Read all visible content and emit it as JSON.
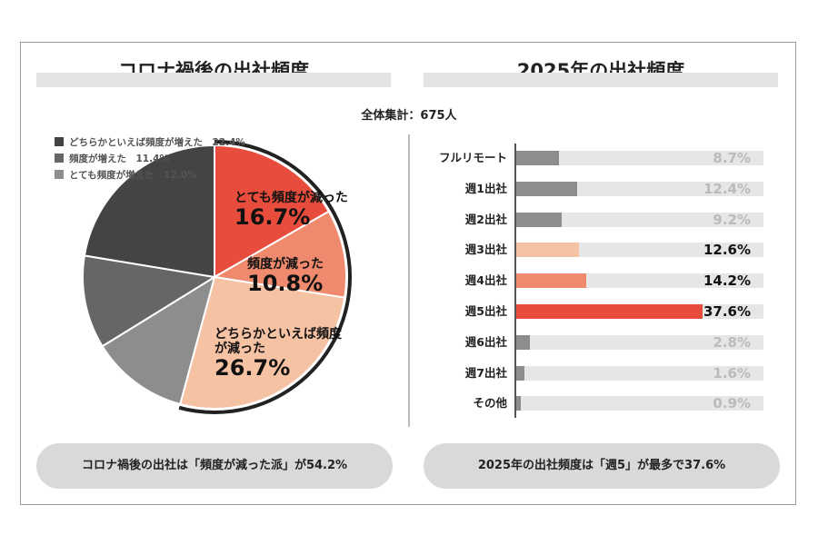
{
  "left_title": "コロナ禍後の出社頻度",
  "right_title": "2025年の出社頻度",
  "total_label": "全体集計：675人",
  "left_summary": "コロナ禍後の出社は「頻度が減った派」が54.2%",
  "right_summary": "2025年の出社頻度は「週5」が最多で37.6%",
  "chart_data": [
    {
      "type": "pie",
      "title": "コロナ禍後の出社頻度",
      "slices": [
        {
          "label": "とても頻度が減った",
          "value": 16.7,
          "display": "16.7%",
          "color": "#e74c3c"
        },
        {
          "label": "頻度が減った",
          "value": 10.8,
          "display": "10.8%",
          "color": "#ef8a6e"
        },
        {
          "label": "どちらかといえば頻度が減った",
          "value": 26.7,
          "display": "26.7%",
          "color": "#f6c2a4"
        },
        {
          "label": "とても頻度が増えた",
          "value": 12.0,
          "display": "12.0%",
          "color": "#8d8d8d"
        },
        {
          "label": "頻度が増えた",
          "value": 11.4,
          "display": "11.4%",
          "color": "#666666"
        },
        {
          "label": "どちらかといえば頻度が増えた",
          "value": 22.4,
          "display": "22.4%",
          "color": "#444444"
        }
      ],
      "legend": [
        {
          "text": "どちらかといえば頻度が増えた　22.4%",
          "color": "#444444"
        },
        {
          "text": "頻度が増えた　11.4%",
          "color": "#666666"
        },
        {
          "text": "とても頻度が増えた　12.0%",
          "color": "#8d8d8d"
        }
      ],
      "inner_labels": [
        {
          "text": "とても頻度が減った",
          "value": "16.7%"
        },
        {
          "text": "頻度が減った",
          "value": "10.8%"
        },
        {
          "text": "どちらかといえば頻度が減った",
          "value": "26.7%"
        }
      ]
    },
    {
      "type": "bar",
      "title": "2025年の出社頻度",
      "categories": [
        "フルリモート",
        "週1出社",
        "週2出社",
        "週3出社",
        "週4出社",
        "週5出社",
        "週6出社",
        "週7出社",
        "その他"
      ],
      "values": [
        8.7,
        12.4,
        9.2,
        12.6,
        14.2,
        37.6,
        2.8,
        1.6,
        0.9
      ],
      "value_labels": [
        "8.7%",
        "12.4%",
        "9.2%",
        "12.6%",
        "14.2%",
        "37.6%",
        "2.8%",
        "1.6%",
        "0.9%"
      ],
      "colors": [
        "#8d8d8d",
        "#8d8d8d",
        "#8d8d8d",
        "#f6c2a4",
        "#ef8a6e",
        "#e74c3c",
        "#8d8d8d",
        "#8d8d8d",
        "#8d8d8d"
      ],
      "value_colors": [
        "#bbbbbb",
        "#bbbbbb",
        "#bbbbbb",
        "#111111",
        "#111111",
        "#111111",
        "#bbbbbb",
        "#bbbbbb",
        "#bbbbbb"
      ],
      "xlim": [
        0,
        50
      ]
    }
  ]
}
